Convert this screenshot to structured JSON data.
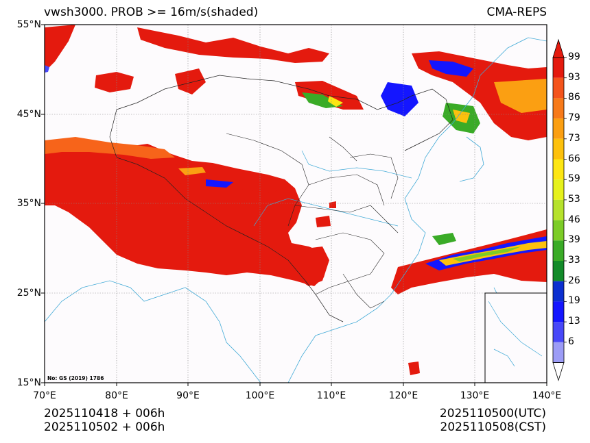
{
  "title": {
    "left": "vwsh3000. PROB >= 16m/s(shaded)",
    "right": "CMA-REPS"
  },
  "axes": {
    "lat_labels": [
      "55°N",
      "45°N",
      "35°N",
      "25°N",
      "15°N"
    ],
    "lon_labels": [
      "70°E",
      "80°E",
      "90°E",
      "100°E",
      "110°E",
      "120°E",
      "130°E",
      "140°E"
    ]
  },
  "colorbar": {
    "levels": [
      "99",
      "93",
      "86",
      "79",
      "73",
      "66",
      "59",
      "53",
      "46",
      "39",
      "33",
      "26",
      "19",
      "13",
      "6"
    ],
    "colors": [
      "#e41a0e",
      "#f4541c",
      "#f77a1a",
      "#fb9f12",
      "#fdc10d",
      "#fde613",
      "#e6f11c",
      "#b6e22c",
      "#7ccc27",
      "#3aab27",
      "#138b2a",
      "#0c2fd0",
      "#1416ff",
      "#4848f8",
      "#9c9cf6"
    ],
    "extend_max_color": "#e41a0e",
    "extend_min_color": "#ffffff"
  },
  "footer": {
    "left_line1": "2025110418  +  006h",
    "left_line2": "2025110502  +  006h",
    "right_line1": "2025110500(UTC)",
    "right_line2": "2025110508(CST)"
  },
  "map": {
    "review_number": "No: GS (2019) 1786"
  },
  "colors": {
    "ocean": "#fdfbfd",
    "land_border": "#222222",
    "river": "#3fa9d6",
    "grid": "#888888"
  }
}
